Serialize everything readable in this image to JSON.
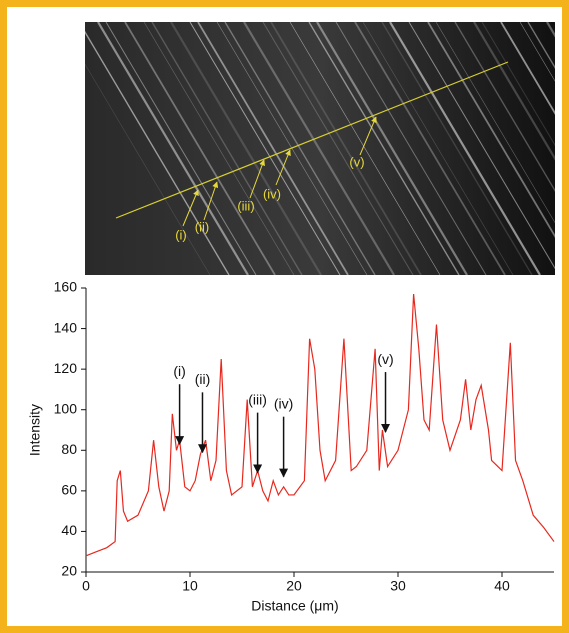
{
  "chart_data": {
    "type": "line",
    "xlabel": "Distance (μm)",
    "ylabel": "Intensity",
    "x": [
      0,
      1,
      2,
      2.8,
      3,
      3.3,
      3.6,
      4,
      5,
      6,
      6.5,
      7,
      7.5,
      8,
      8.3,
      8.7,
      9,
      9.5,
      10,
      10.5,
      11,
      11.5,
      12,
      12.5,
      13,
      13.5,
      14,
      15,
      15.5,
      16,
      16.5,
      17,
      17.5,
      18,
      18.5,
      19,
      19.5,
      20,
      21,
      21.5,
      22,
      22.5,
      23,
      24,
      24.8,
      25.5,
      26,
      27,
      27.8,
      28.2,
      28.5,
      29,
      30,
      31,
      31.5,
      32,
      32.5,
      33,
      33.7,
      34.3,
      35,
      36,
      36.5,
      37,
      37.5,
      38,
      38.7,
      39,
      40,
      40.8,
      41.3,
      42,
      43,
      44,
      45
    ],
    "values": [
      28,
      30,
      32,
      35,
      65,
      70,
      50,
      45,
      48,
      60,
      85,
      62,
      50,
      60,
      98,
      80,
      85,
      62,
      60,
      65,
      78,
      85,
      65,
      75,
      125,
      70,
      58,
      62,
      105,
      62,
      70,
      60,
      55,
      65,
      58,
      62,
      58,
      58,
      65,
      135,
      120,
      80,
      65,
      75,
      135,
      70,
      72,
      80,
      130,
      70,
      90,
      72,
      80,
      100,
      157,
      130,
      95,
      90,
      142,
      95,
      80,
      95,
      115,
      90,
      105,
      112,
      90,
      75,
      70,
      133,
      75,
      65,
      48,
      42,
      35
    ],
    "color": "#e8281e",
    "xlim": [
      0,
      45
    ],
    "ylim": [
      20,
      160
    ],
    "xticks": [
      0,
      10,
      20,
      30,
      40
    ],
    "yticks": [
      20,
      40,
      60,
      80,
      100,
      120,
      140,
      160
    ],
    "annotations": [
      {
        "text": "(i)",
        "x": 9,
        "y": 82
      },
      {
        "text": "(ii)",
        "x": 11.2,
        "y": 78
      },
      {
        "text": "(iii)",
        "x": 16.5,
        "y": 68
      },
      {
        "text": "(iv)",
        "x": 19,
        "y": 66
      },
      {
        "text": "(v)",
        "x": 28.8,
        "y": 88
      }
    ]
  }
}
